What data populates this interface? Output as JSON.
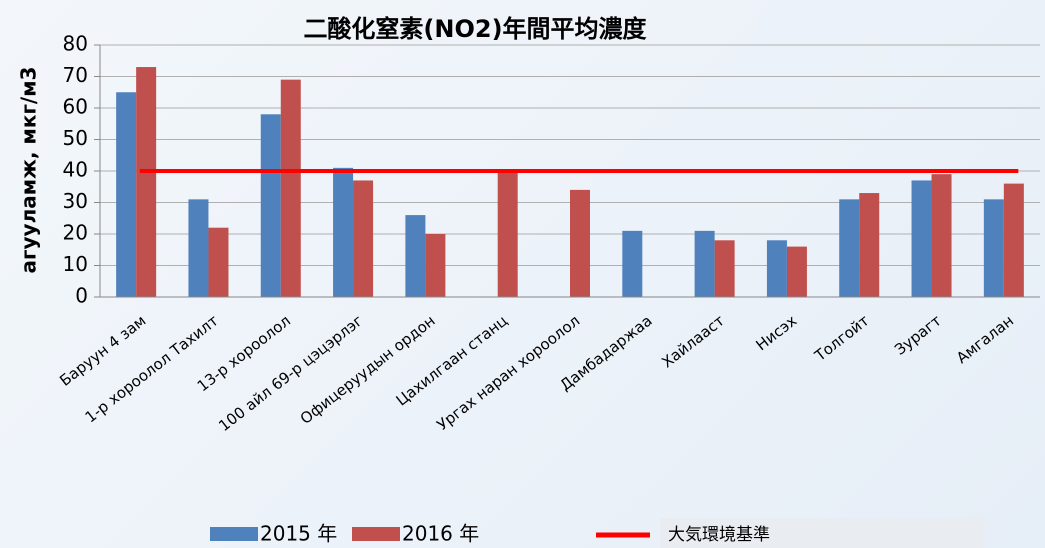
{
  "chart_data": {
    "type": "bar",
    "title": "二酸化窒素(NO2)年間平均濃度",
    "y_label": "агууламж, мкг/м3",
    "categories": [
      "Баруун 4 зам",
      "1-р хороолол Тахилт",
      "13-р хороолол",
      "100 айл 69-р цэцэрлэг",
      "Офицеруудын ордон",
      "Цахилгаан станц",
      "Ургах наран хороолол",
      "Дамбадаржаа",
      "Хайлааст",
      "Нисэх",
      "Толгойт",
      "Зурагт",
      "Амгалан"
    ],
    "series": [
      {
        "name": "2015 年",
        "color": "#4f81bd",
        "values": [
          65,
          31,
          58,
          41,
          26,
          null,
          null,
          21,
          21,
          18,
          31,
          37,
          31
        ]
      },
      {
        "name": "2016 年",
        "color": "#c0504d",
        "values": [
          73,
          22,
          69,
          37,
          20,
          40,
          34,
          null,
          18,
          16,
          33,
          39,
          36
        ]
      }
    ],
    "reference_line": {
      "name": "大気環境基準",
      "value": 40,
      "color": "#ff0000"
    },
    "ylim": [
      0,
      80
    ],
    "yticks": [
      0,
      10,
      20,
      30,
      40,
      50,
      60,
      70,
      80
    ],
    "grid": true
  }
}
